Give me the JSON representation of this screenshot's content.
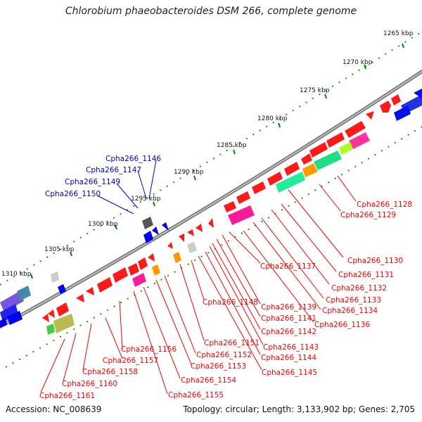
{
  "title": "Chlorobium phaeobacteroides DSM 266, complete genome",
  "accession": "Accession: NC_008639",
  "summary": "Topology: circular; Length: 3,133,902 bp; Genes: 2,705",
  "tick_labels": [
    "1265 kbp",
    "1270 kbp",
    "1275 kbp",
    "1280 kbp",
    "1285 kbp",
    "1290 kbp",
    "1295 kbp",
    "1300 kbp",
    "1305 kbp",
    "1310 kbp"
  ],
  "blue_labels": [
    "Cpha266_1146",
    "Cpha266_1147",
    "Cpha266_1149",
    "Cpha266_1150"
  ],
  "red_labels": [
    "Cpha266_1128",
    "Cpha266_1129",
    "Cpha266_1130",
    "Cpha266_1131",
    "Cpha266_1132",
    "Cpha266_1133",
    "Cpha266_1134",
    "Cpha266_1136",
    "Cpha266_1137",
    "Cpha266_1139",
    "Cpha266_1141",
    "Cpha266_1142",
    "Cpha266_1143",
    "Cpha266_1144",
    "Cpha266_1145",
    "Cpha266_1148",
    "Cpha266_1151",
    "Cpha266_1152",
    "Cpha266_1153",
    "Cpha266_1154",
    "Cpha266_1155",
    "Cpha266_1156",
    "Cpha266_1157",
    "Cpha266_1158",
    "Cpha266_1160",
    "Cpha266_1161"
  ],
  "colors": {
    "forward": "#ff0000",
    "reverse": "#0000ff",
    "label_red": "#ff0000",
    "label_blue": "#0000cc",
    "backbone": "#888888",
    "tick": "#008800"
  }
}
